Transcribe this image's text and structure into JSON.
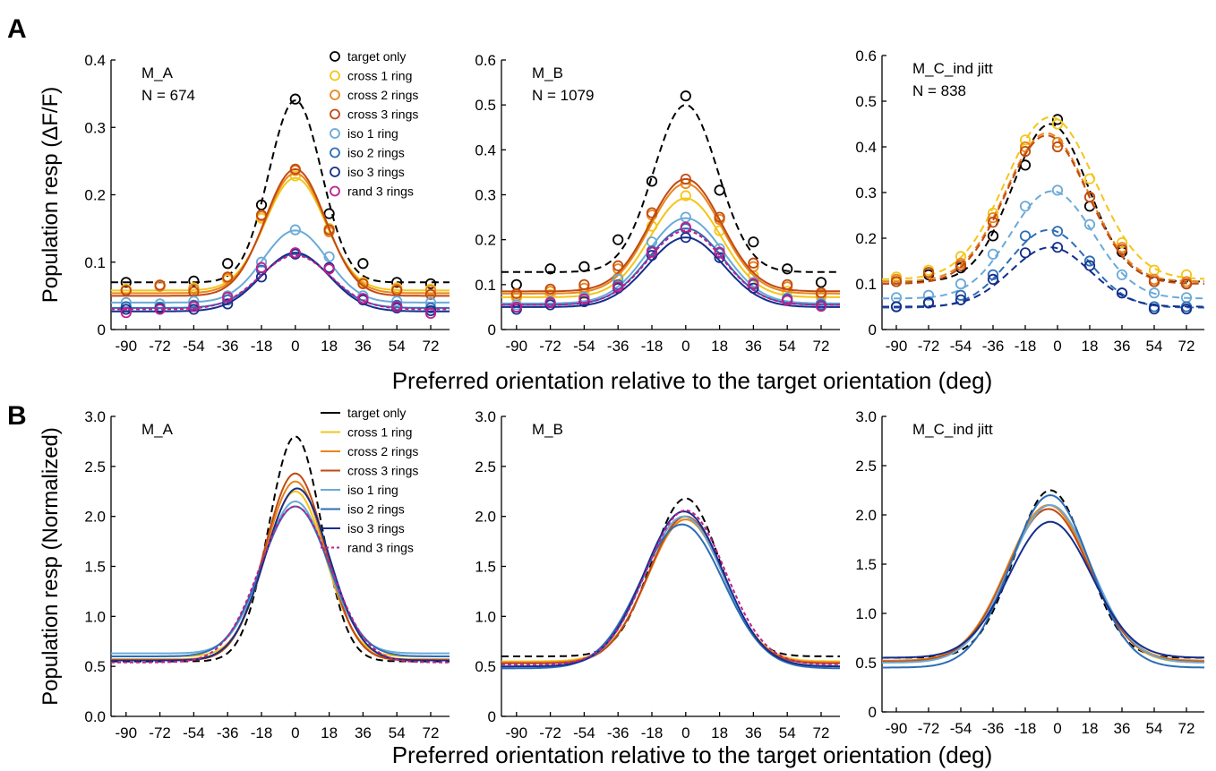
{
  "panel_labels": {
    "A": "A",
    "B": "B"
  },
  "xlabel_A": "Preferred orientation relative to the target orientation (deg)",
  "xlabel_B": "Preferred orientation relative to the target orientation (deg)",
  "series_styles": {
    "target only": {
      "color": "#000000",
      "dash": true
    },
    "cross 1 ring": {
      "color": "#F5C518",
      "dash": false
    },
    "cross 2 rings": {
      "color": "#E8861C",
      "dash": false
    },
    "cross 3 rings": {
      "color": "#C24A12",
      "dash": false
    },
    "iso 1 ring": {
      "color": "#6AAAD8",
      "dash": false
    },
    "iso 2 rings": {
      "color": "#2C6DB5",
      "dash": false
    },
    "iso 3 rings": {
      "color": "#142E8C",
      "dash": false
    },
    "rand 3 rings": {
      "color": "#C21E8C",
      "dash": false
    }
  },
  "chart_data": [
    {
      "id": "A1",
      "type": "line",
      "annotation": [
        "M_A",
        "N = 674"
      ],
      "ylabel": "Population resp (ΔF/F)",
      "xlabel": "",
      "x": [
        -90,
        -72,
        -54,
        -36,
        -18,
        0,
        18,
        36,
        54,
        72
      ],
      "xlim": [
        -98,
        82
      ],
      "ylim": [
        0,
        0.4
      ],
      "yticks": [
        0,
        0.1,
        0.2,
        0.3,
        0.4
      ],
      "ytick_labels": [
        "0",
        "0.1",
        "0.2",
        "0.3",
        "0.4"
      ],
      "legend": [
        "target only",
        "cross 1 ring",
        "cross 2 rings",
        "cross 3 rings",
        "iso 1 ring",
        "iso 2 rings",
        "iso 3 rings",
        "rand 3 rings"
      ],
      "legend_position": "top-right",
      "legend_marker": "circle",
      "series": [
        {
          "name": "target only",
          "points": [
            0.07,
            0.065,
            0.072,
            0.098,
            0.185,
            0.342,
            0.172,
            0.098,
            0.07,
            0.068
          ],
          "fit": {
            "base": 0.07,
            "amp": 0.27,
            "mu": 0,
            "sigma": 14
          },
          "dashed": true
        },
        {
          "name": "cross 1 ring",
          "points": [
            0.06,
            0.066,
            0.062,
            0.074,
            0.165,
            0.228,
            0.15,
            0.07,
            0.062,
            0.06
          ],
          "fit": {
            "base": 0.058,
            "amp": 0.167,
            "mu": 0,
            "sigma": 16
          }
        },
        {
          "name": "cross 2 rings",
          "points": [
            0.058,
            0.064,
            0.06,
            0.076,
            0.168,
            0.236,
            0.145,
            0.068,
            0.06,
            0.058
          ],
          "fit": {
            "base": 0.054,
            "amp": 0.178,
            "mu": 0,
            "sigma": 16
          }
        },
        {
          "name": "cross 3 rings",
          "points": [
            0.058,
            0.066,
            0.056,
            0.078,
            0.17,
            0.238,
            0.148,
            0.068,
            0.058,
            0.052
          ],
          "fit": {
            "base": 0.05,
            "amp": 0.188,
            "mu": 0,
            "sigma": 16
          }
        },
        {
          "name": "iso 1 ring",
          "points": [
            0.04,
            0.038,
            0.042,
            0.05,
            0.1,
            0.148,
            0.108,
            0.05,
            0.042,
            0.04
          ],
          "fit": {
            "base": 0.04,
            "amp": 0.107,
            "mu": 0,
            "sigma": 17
          }
        },
        {
          "name": "iso 2 rings",
          "points": [
            0.034,
            0.033,
            0.036,
            0.044,
            0.088,
            0.112,
            0.09,
            0.046,
            0.036,
            0.032
          ],
          "fit": {
            "base": 0.032,
            "amp": 0.08,
            "mu": 0,
            "sigma": 18
          }
        },
        {
          "name": "iso 3 rings",
          "points": [
            0.03,
            0.031,
            0.03,
            0.038,
            0.078,
            0.112,
            0.092,
            0.044,
            0.032,
            0.028
          ],
          "fit": {
            "base": 0.027,
            "amp": 0.087,
            "mu": 0,
            "sigma": 18
          }
        },
        {
          "name": "rand 3 rings",
          "points": [
            0.025,
            0.03,
            0.034,
            0.048,
            0.092,
            0.114,
            0.09,
            0.046,
            0.034,
            0.024
          ],
          "fit": {
            "base": 0.03,
            "amp": 0.08,
            "mu": 0,
            "sigma": 19
          },
          "dashed": true
        }
      ]
    },
    {
      "id": "A2",
      "type": "line",
      "annotation": [
        "M_B",
        "N = 1079"
      ],
      "ylabel": "",
      "xlabel": "",
      "x": [
        -90,
        -72,
        -54,
        -36,
        -18,
        0,
        18,
        36,
        54,
        72
      ],
      "xlim": [
        -98,
        82
      ],
      "ylim": [
        0,
        0.6
      ],
      "yticks": [
        0,
        0.1,
        0.2,
        0.3,
        0.4,
        0.5,
        0.6
      ],
      "ytick_labels": [
        "0",
        "0.1",
        "0.2",
        "0.3",
        "0.4",
        "0.5",
        "0.6"
      ],
      "series": [
        {
          "name": "target only",
          "points": [
            0.1,
            0.135,
            0.14,
            0.2,
            0.33,
            0.52,
            0.31,
            0.195,
            0.135,
            0.105
          ],
          "fit": {
            "base": 0.128,
            "amp": 0.372,
            "mu": 0,
            "sigma": 17
          },
          "dashed": true
        },
        {
          "name": "cross 1 ring",
          "points": [
            0.07,
            0.078,
            0.08,
            0.116,
            0.23,
            0.298,
            0.22,
            0.12,
            0.085,
            0.072
          ],
          "fit": {
            "base": 0.072,
            "amp": 0.22,
            "mu": 0,
            "sigma": 19
          }
        },
        {
          "name": "cross 2 rings",
          "points": [
            0.075,
            0.085,
            0.092,
            0.135,
            0.255,
            0.325,
            0.245,
            0.14,
            0.095,
            0.078
          ],
          "fit": {
            "base": 0.08,
            "amp": 0.245,
            "mu": 0,
            "sigma": 19
          }
        },
        {
          "name": "cross 3 rings",
          "points": [
            0.08,
            0.09,
            0.1,
            0.142,
            0.26,
            0.335,
            0.25,
            0.148,
            0.1,
            0.082
          ],
          "fit": {
            "base": 0.085,
            "amp": 0.25,
            "mu": 0,
            "sigma": 19
          }
        },
        {
          "name": "iso 1 ring",
          "points": [
            0.055,
            0.062,
            0.072,
            0.112,
            0.195,
            0.25,
            0.18,
            0.105,
            0.07,
            0.058
          ],
          "fit": {
            "base": 0.058,
            "amp": 0.19,
            "mu": 0,
            "sigma": 20
          }
        },
        {
          "name": "iso 2 rings",
          "points": [
            0.05,
            0.06,
            0.068,
            0.1,
            0.175,
            0.225,
            0.17,
            0.1,
            0.068,
            0.055
          ],
          "fit": {
            "base": 0.055,
            "amp": 0.17,
            "mu": 0,
            "sigma": 20
          }
        },
        {
          "name": "iso 3 rings",
          "points": [
            0.045,
            0.055,
            0.062,
            0.092,
            0.165,
            0.205,
            0.16,
            0.092,
            0.065,
            0.052
          ],
          "fit": {
            "base": 0.05,
            "amp": 0.155,
            "mu": 0,
            "sigma": 20
          }
        },
        {
          "name": "rand 3 rings",
          "points": [
            0.05,
            0.06,
            0.068,
            0.095,
            0.172,
            0.228,
            0.172,
            0.102,
            0.065,
            0.052
          ],
          "fit": {
            "base": 0.055,
            "amp": 0.165,
            "mu": 0,
            "sigma": 20
          },
          "dashed": true
        }
      ]
    },
    {
      "id": "A3",
      "type": "line",
      "annotation": [
        "M_C_ind jitt",
        "N = 838"
      ],
      "ylabel": "",
      "xlabel": "",
      "x": [
        -90,
        -72,
        -54,
        -36,
        -18,
        0,
        18,
        36,
        54,
        72
      ],
      "xlim": [
        -98,
        82
      ],
      "ylim": [
        0,
        0.6
      ],
      "yticks": [
        0,
        0.1,
        0.2,
        0.3,
        0.4,
        0.5,
        0.6
      ],
      "ytick_labels": [
        "0",
        "0.1",
        "0.2",
        "0.3",
        "0.4",
        "0.5",
        "0.6"
      ],
      "series": [
        {
          "name": "target only",
          "points": [
            0.105,
            0.12,
            0.135,
            0.205,
            0.36,
            0.46,
            0.27,
            0.17,
            0.105,
            0.1
          ],
          "fit": {
            "base": 0.105,
            "amp": 0.345,
            "mu": -4,
            "sigma": 21
          },
          "dashed": true
        },
        {
          "name": "cross 1 ring",
          "points": [
            0.115,
            0.13,
            0.16,
            0.255,
            0.415,
            0.45,
            0.33,
            0.19,
            0.13,
            0.12
          ],
          "fit": {
            "base": 0.11,
            "amp": 0.355,
            "mu": -4,
            "sigma": 25
          },
          "dashed": true
        },
        {
          "name": "cross 2 rings",
          "points": [
            0.11,
            0.125,
            0.145,
            0.245,
            0.4,
            0.41,
            0.29,
            0.18,
            0.11,
            0.105
          ],
          "fit": {
            "base": 0.105,
            "amp": 0.325,
            "mu": -6,
            "sigma": 23
          },
          "dashed": true
        },
        {
          "name": "cross 3 rings",
          "points": [
            0.105,
            0.125,
            0.14,
            0.235,
            0.39,
            0.4,
            0.29,
            0.175,
            0.105,
            0.1
          ],
          "fit": {
            "base": 0.1,
            "amp": 0.325,
            "mu": -6,
            "sigma": 23
          },
          "dashed": true
        },
        {
          "name": "iso 1 ring",
          "points": [
            0.07,
            0.075,
            0.1,
            0.165,
            0.27,
            0.305,
            0.23,
            0.12,
            0.08,
            0.07
          ],
          "fit": {
            "base": 0.068,
            "amp": 0.235,
            "mu": -3,
            "sigma": 23
          },
          "dashed": true
        },
        {
          "name": "iso 2 rings",
          "points": [
            0.05,
            0.06,
            0.075,
            0.12,
            0.205,
            0.215,
            0.15,
            0.08,
            0.05,
            0.05
          ],
          "fit": {
            "base": 0.048,
            "amp": 0.17,
            "mu": -5,
            "sigma": 22
          },
          "dashed": true
        },
        {
          "name": "iso 3 rings",
          "points": [
            0.05,
            0.058,
            0.065,
            0.11,
            0.168,
            0.18,
            0.14,
            0.08,
            0.045,
            0.045
          ],
          "fit": {
            "base": 0.05,
            "amp": 0.13,
            "mu": -4,
            "sigma": 22
          },
          "dashed": true
        }
      ]
    },
    {
      "id": "B1",
      "type": "line",
      "annotation": [
        "M_A"
      ],
      "ylabel": "Population resp (Normalized)",
      "xlabel": "",
      "x": [
        -90,
        -72,
        -54,
        -36,
        -18,
        0,
        18,
        36,
        54,
        72
      ],
      "xlim": [
        -98,
        82
      ],
      "ylim": [
        0,
        3.0
      ],
      "yticks": [
        0,
        0.5,
        1.0,
        1.5,
        2.0,
        2.5,
        3.0
      ],
      "ytick_labels": [
        "0.0",
        "0.5",
        "1.0",
        "1.5",
        "2.0",
        "2.5",
        "3.0"
      ],
      "legend": [
        "target only",
        "cross 1 ring",
        "cross 2 rings",
        "cross 3 rings",
        "iso 1 ring",
        "iso 2 rings",
        "iso 3 rings",
        "rand 3 rings"
      ],
      "legend_position": "top-right",
      "legend_marker": "line",
      "series": [
        {
          "name": "target only",
          "fit": {
            "base": 0.55,
            "amp": 2.25,
            "mu": 0,
            "sigma": 14
          },
          "dashed": true
        },
        {
          "name": "cross 1 ring",
          "fit": {
            "base": 0.6,
            "amp": 1.65,
            "mu": 0,
            "sigma": 16
          }
        },
        {
          "name": "cross 2 rings",
          "fit": {
            "base": 0.57,
            "amp": 1.78,
            "mu": 0,
            "sigma": 16
          }
        },
        {
          "name": "cross 3 rings",
          "fit": {
            "base": 0.56,
            "amp": 1.87,
            "mu": 0,
            "sigma": 16
          }
        },
        {
          "name": "iso 1 ring",
          "fit": {
            "base": 0.63,
            "amp": 1.52,
            "mu": 0,
            "sigma": 17
          }
        },
        {
          "name": "iso 2 rings",
          "fit": {
            "base": 0.6,
            "amp": 1.5,
            "mu": 0,
            "sigma": 18
          }
        },
        {
          "name": "iso 3 rings",
          "fit": {
            "base": 0.56,
            "amp": 1.72,
            "mu": 1,
            "sigma": 17
          }
        },
        {
          "name": "rand 3 rings",
          "fit": {
            "base": 0.54,
            "amp": 1.56,
            "mu": 0,
            "sigma": 19
          },
          "dashed": true
        }
      ]
    },
    {
      "id": "B2",
      "type": "line",
      "annotation": [
        "M_B"
      ],
      "ylabel": "",
      "xlabel": "",
      "x": [
        -90,
        -72,
        -54,
        -36,
        -18,
        0,
        18,
        36,
        54,
        72
      ],
      "xlim": [
        -98,
        82
      ],
      "ylim": [
        0,
        3.0
      ],
      "yticks": [
        0,
        0.5,
        1.0,
        1.5,
        2.0,
        2.5,
        3.0
      ],
      "ytick_labels": [
        "0",
        "0.5",
        "1.0",
        "1.5",
        "2.0",
        "2.5",
        "3.0"
      ],
      "series": [
        {
          "name": "target only",
          "fit": {
            "base": 0.6,
            "amp": 1.58,
            "mu": 0,
            "sigma": 18
          },
          "dashed": true
        },
        {
          "name": "cross 1 ring",
          "fit": {
            "base": 0.55,
            "amp": 1.42,
            "mu": 0,
            "sigma": 20
          }
        },
        {
          "name": "cross 2 rings",
          "fit": {
            "base": 0.54,
            "amp": 1.43,
            "mu": 0,
            "sigma": 20
          }
        },
        {
          "name": "cross 3 rings",
          "fit": {
            "base": 0.53,
            "amp": 1.47,
            "mu": 0,
            "sigma": 20
          }
        },
        {
          "name": "iso 1 ring",
          "fit": {
            "base": 0.5,
            "amp": 1.5,
            "mu": -1,
            "sigma": 21
          }
        },
        {
          "name": "iso 2 rings",
          "fit": {
            "base": 0.48,
            "amp": 1.44,
            "mu": -2,
            "sigma": 22
          }
        },
        {
          "name": "iso 3 rings",
          "fit": {
            "base": 0.5,
            "amp": 1.55,
            "mu": -1,
            "sigma": 21
          }
        },
        {
          "name": "rand 3 rings",
          "fit": {
            "base": 0.52,
            "amp": 1.54,
            "mu": 0,
            "sigma": 21
          },
          "dashed": true
        }
      ]
    },
    {
      "id": "B3",
      "type": "line",
      "annotation": [
        "M_C_ind jitt"
      ],
      "ylabel": "",
      "xlabel": "",
      "x": [
        -90,
        -72,
        -54,
        -36,
        -18,
        0,
        18,
        36,
        54,
        72
      ],
      "xlim": [
        -98,
        82
      ],
      "ylim": [
        0,
        3.0
      ],
      "yticks": [
        0,
        0.5,
        1.0,
        1.5,
        2.0,
        2.5,
        3.0
      ],
      "ytick_labels": [
        "0",
        "0.5",
        "1.0",
        "1.5",
        "2.0",
        "2.5",
        "3.0"
      ],
      "series": [
        {
          "name": "target only",
          "fit": {
            "base": 0.55,
            "amp": 1.7,
            "mu": -4,
            "sigma": 20
          },
          "dashed": true
        },
        {
          "name": "cross 1 ring",
          "fit": {
            "base": 0.5,
            "amp": 1.6,
            "mu": -5,
            "sigma": 23
          }
        },
        {
          "name": "cross 2 rings",
          "fit": {
            "base": 0.52,
            "amp": 1.58,
            "mu": -5,
            "sigma": 23
          }
        },
        {
          "name": "cross 3 rings",
          "fit": {
            "base": 0.51,
            "amp": 1.55,
            "mu": -5,
            "sigma": 23
          }
        },
        {
          "name": "iso 1 ring",
          "fit": {
            "base": 0.5,
            "amp": 1.6,
            "mu": -4,
            "sigma": 23
          }
        },
        {
          "name": "iso 2 rings",
          "fit": {
            "base": 0.45,
            "amp": 1.75,
            "mu": -4,
            "sigma": 22
          }
        },
        {
          "name": "iso 3 rings",
          "fit": {
            "base": 0.55,
            "amp": 1.38,
            "mu": -4,
            "sigma": 23
          }
        }
      ]
    }
  ]
}
